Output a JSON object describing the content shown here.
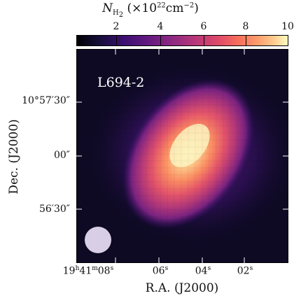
{
  "colorbar": {
    "symbol": "N",
    "subscript": "H",
    "subsub": "2",
    "label_rest": "(×10",
    "exponent": "22",
    "unit": "cm",
    "unit_exp": "−2",
    "close": ")",
    "ticks": [
      "2",
      "4",
      "6",
      "8",
      "10"
    ],
    "range": [
      0.5,
      10
    ],
    "colormap": "magma"
  },
  "map": {
    "source_label": "L694-2",
    "beam": "circle",
    "beam_color": "#d8cfe6"
  },
  "axes": {
    "xlabel": "R.A. (J2000)",
    "ylabel": "Dec. (J2000)",
    "xticks": [
      {
        "h": "19",
        "hs": "h",
        "m": "41",
        "ms": "m",
        "s": "08",
        "ss": "s"
      },
      {
        "s": "06",
        "ss": "s"
      },
      {
        "s": "04",
        "ss": "s"
      },
      {
        "s": "02",
        "ss": "s"
      }
    ],
    "yticks": [
      "10°57′30″",
      "00″",
      "56′30″"
    ]
  }
}
